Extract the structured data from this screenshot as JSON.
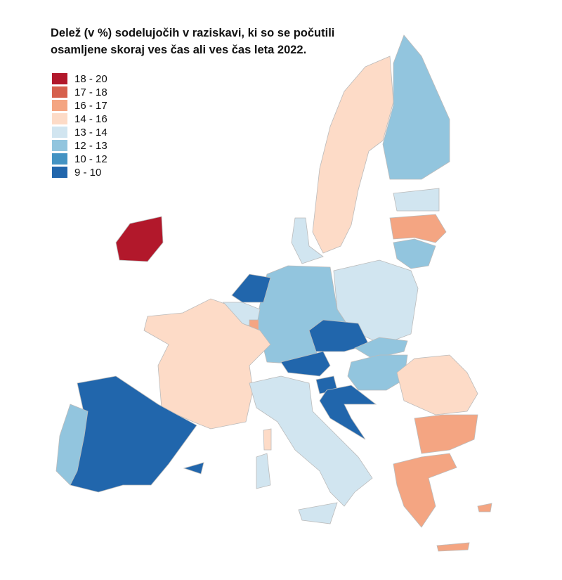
{
  "title": [
    "Delež (v %) sodelujočih v raziskavi, ki so se počutili",
    "osamljene skoraj ves čas ali ves čas leta 2022."
  ],
  "legend": [
    {
      "label": "18 - 20",
      "color": "#b2182b"
    },
    {
      "label": "17 - 18",
      "color": "#d6604d"
    },
    {
      "label": "16 - 17",
      "color": "#f4a582"
    },
    {
      "label": "14 - 16",
      "color": "#fddbc7"
    },
    {
      "label": "13 - 14",
      "color": "#d1e5f0"
    },
    {
      "label": "12 - 13",
      "color": "#92c5de"
    },
    {
      "label": "10 - 12",
      "color": "#4393c3"
    },
    {
      "label": "9 - 10",
      "color": "#2166ac"
    }
  ]
}
